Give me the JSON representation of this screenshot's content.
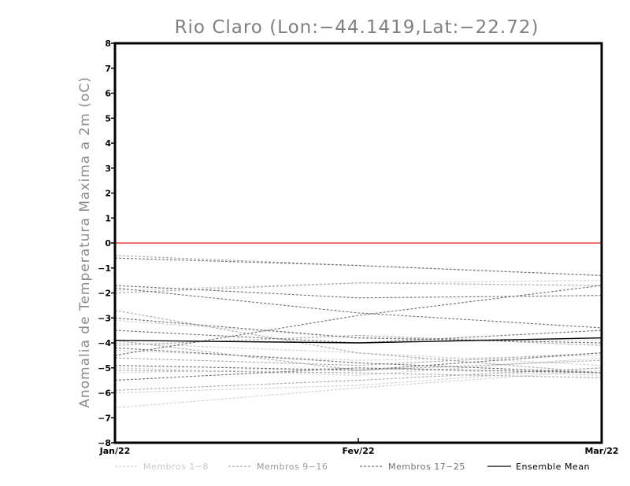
{
  "chart_data": {
    "type": "line",
    "title": "Rio Claro (Lon:−44.1419,Lat:−22.72)",
    "ylabel": "Anomalia de Temperatura Maxima a 2m (oC)",
    "xlabel": "",
    "categories": [
      "Jan/22",
      "Fev/22",
      "Mar/22"
    ],
    "ylim": [
      -8,
      8
    ],
    "yticks": [
      "8",
      "7",
      "6",
      "5",
      "4",
      "3",
      "2",
      "1",
      "0",
      "−1",
      "−2",
      "−3",
      "−4",
      "−5",
      "−6",
      "−7",
      "−8"
    ],
    "reference_line": {
      "y": 0,
      "color": "#ee4444"
    },
    "groups": [
      {
        "name": "Membros 1−8",
        "color": "#cfcfcf"
      },
      {
        "name": "Membros 9−16",
        "color": "#a9a9a9"
      },
      {
        "name": "Membros 17−25",
        "color": "#707070"
      },
      {
        "name": "Ensemble Mean",
        "color": "#000000"
      }
    ],
    "series": [
      {
        "group": 0,
        "values": [
          -6.6,
          -5.8,
          -5.1
        ]
      },
      {
        "group": 0,
        "values": [
          -6.0,
          -5.7,
          -5.0
        ]
      },
      {
        "group": 0,
        "values": [
          -4.3,
          -4.7,
          -4.5
        ]
      },
      {
        "group": 0,
        "values": [
          -4.0,
          -4.4,
          -4.9
        ]
      },
      {
        "group": 0,
        "values": [
          -5.0,
          -5.3,
          -4.6
        ]
      },
      {
        "group": 0,
        "values": [
          -3.1,
          -3.8,
          -3.9
        ]
      },
      {
        "group": 0,
        "values": [
          -5.2,
          -5.0,
          -5.3
        ]
      },
      {
        "group": 0,
        "values": [
          -1.9,
          -1.6,
          -1.5
        ]
      },
      {
        "group": 1,
        "values": [
          -0.5,
          -0.9,
          -1.3
        ]
      },
      {
        "group": 1,
        "values": [
          -2.7,
          -4.4,
          -5.2
        ]
      },
      {
        "group": 1,
        "values": [
          -4.1,
          -3.7,
          -4.1
        ]
      },
      {
        "group": 1,
        "values": [
          -4.6,
          -4.9,
          -4.4
        ]
      },
      {
        "group": 1,
        "values": [
          -5.9,
          -5.5,
          -5.0
        ]
      },
      {
        "group": 1,
        "values": [
          -3.9,
          -5.1,
          -4.7
        ]
      },
      {
        "group": 1,
        "values": [
          -5.1,
          -5.2,
          -5.4
        ]
      },
      {
        "group": 1,
        "values": [
          -2.0,
          -1.6,
          -1.7
        ]
      },
      {
        "group": 2,
        "values": [
          -0.6,
          -0.9,
          -1.3
        ]
      },
      {
        "group": 2,
        "values": [
          -1.7,
          -2.2,
          -2.1
        ]
      },
      {
        "group": 2,
        "values": [
          -1.8,
          -2.8,
          -3.4
        ]
      },
      {
        "group": 2,
        "values": [
          -4.5,
          -2.9,
          -1.7
        ]
      },
      {
        "group": 2,
        "values": [
          -3.0,
          -3.8,
          -4.0
        ]
      },
      {
        "group": 2,
        "values": [
          -3.5,
          -4.0,
          -3.5
        ]
      },
      {
        "group": 2,
        "values": [
          -4.9,
          -5.1,
          -4.4
        ]
      },
      {
        "group": 2,
        "values": [
          -4.2,
          -4.8,
          -5.2
        ]
      },
      {
        "group": 2,
        "values": [
          -5.5,
          -5.0,
          -5.2
        ]
      },
      {
        "group": 3,
        "values": [
          -3.9,
          -4.0,
          -3.8
        ]
      }
    ]
  }
}
